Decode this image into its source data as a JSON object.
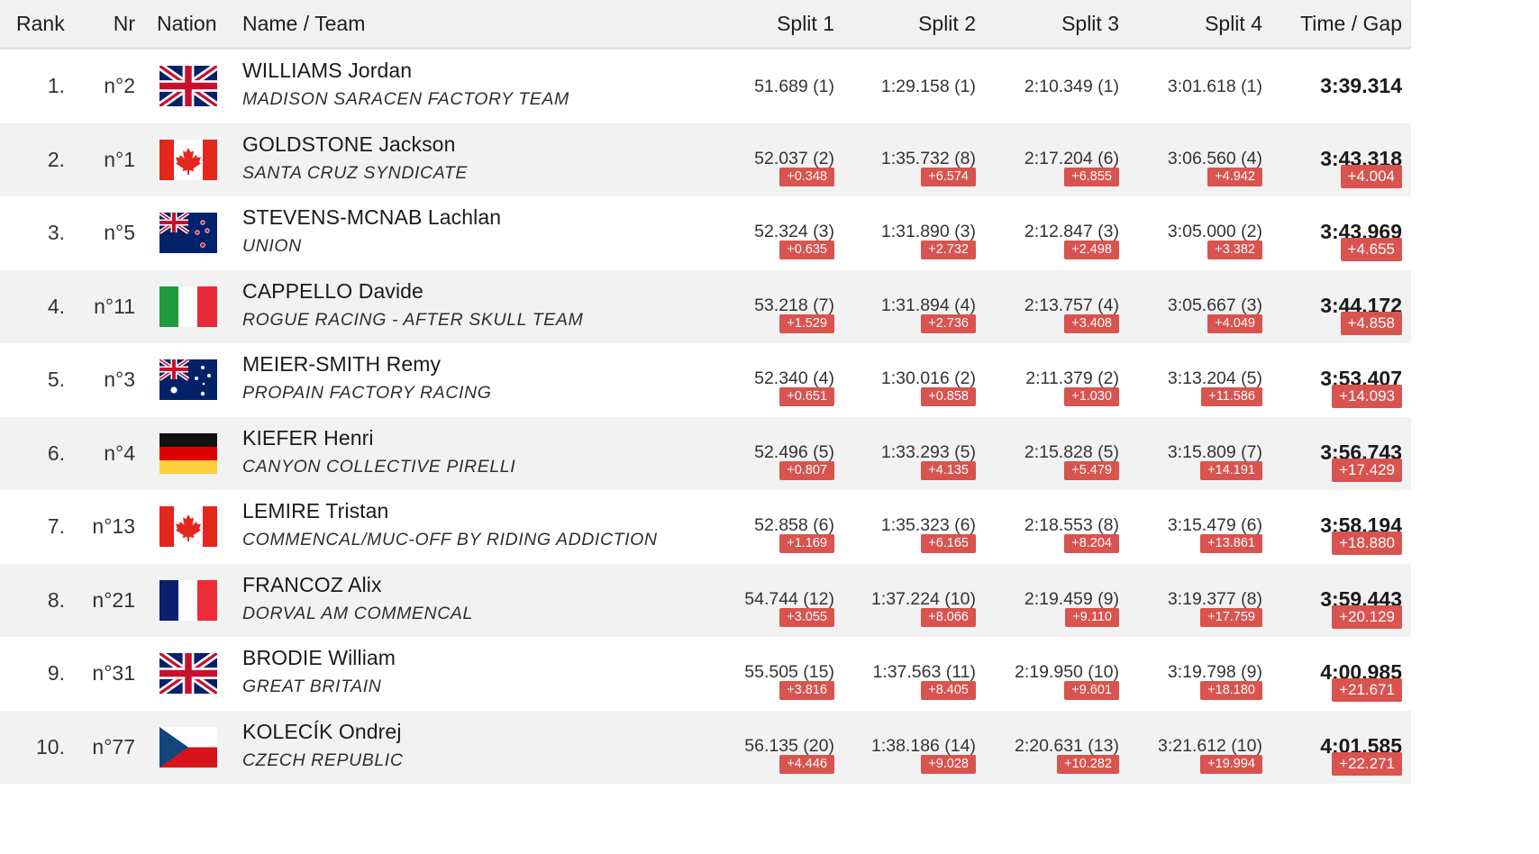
{
  "header": {
    "rank": "Rank",
    "nr": "Nr",
    "nation": "Nation",
    "name_team": "Name / Team",
    "split1": "Split 1",
    "split2": "Split 2",
    "split3": "Split 3",
    "split4": "Split 4",
    "time_gap": "Time / Gap"
  },
  "rows": [
    {
      "rank": "1.",
      "nr": "n°2",
      "flag": "gb-flag-icon",
      "name": "WILLIAMS Jordan",
      "team": "MADISON SARACEN FACTORY TEAM",
      "splits": [
        {
          "value": "51.689 (1)",
          "gap": ""
        },
        {
          "value": "1:29.158 (1)",
          "gap": ""
        },
        {
          "value": "2:10.349 (1)",
          "gap": ""
        },
        {
          "value": "3:01.618 (1)",
          "gap": ""
        }
      ],
      "time": "3:39.314",
      "time_gap": ""
    },
    {
      "rank": "2.",
      "nr": "n°1",
      "flag": "ca-flag-icon",
      "name": "GOLDSTONE Jackson",
      "team": "SANTA CRUZ SYNDICATE",
      "splits": [
        {
          "value": "52.037 (2)",
          "gap": "+0.348"
        },
        {
          "value": "1:35.732 (8)",
          "gap": "+6.574"
        },
        {
          "value": "2:17.204 (6)",
          "gap": "+6.855"
        },
        {
          "value": "3:06.560 (4)",
          "gap": "+4.942"
        }
      ],
      "time": "3:43.318",
      "time_gap": "+4.004"
    },
    {
      "rank": "3.",
      "nr": "n°5",
      "flag": "nz-flag-icon",
      "name": "STEVENS-MCNAB Lachlan",
      "team": "UNION",
      "splits": [
        {
          "value": "52.324 (3)",
          "gap": "+0.635"
        },
        {
          "value": "1:31.890 (3)",
          "gap": "+2.732"
        },
        {
          "value": "2:12.847 (3)",
          "gap": "+2.498"
        },
        {
          "value": "3:05.000 (2)",
          "gap": "+3.382"
        }
      ],
      "time": "3:43.969",
      "time_gap": "+4.655"
    },
    {
      "rank": "4.",
      "nr": "n°11",
      "flag": "it-flag-icon",
      "name": "CAPPELLO Davide",
      "team": "ROGUE RACING - AFTER SKULL TEAM",
      "splits": [
        {
          "value": "53.218 (7)",
          "gap": "+1.529"
        },
        {
          "value": "1:31.894 (4)",
          "gap": "+2.736"
        },
        {
          "value": "2:13.757 (4)",
          "gap": "+3.408"
        },
        {
          "value": "3:05.667 (3)",
          "gap": "+4.049"
        }
      ],
      "time": "3:44.172",
      "time_gap": "+4.858"
    },
    {
      "rank": "5.",
      "nr": "n°3",
      "flag": "au-flag-icon",
      "name": "MEIER-SMITH Remy",
      "team": "PROPAIN FACTORY RACING",
      "splits": [
        {
          "value": "52.340 (4)",
          "gap": "+0.651"
        },
        {
          "value": "1:30.016 (2)",
          "gap": "+0.858"
        },
        {
          "value": "2:11.379 (2)",
          "gap": "+1.030"
        },
        {
          "value": "3:13.204 (5)",
          "gap": "+11.586"
        }
      ],
      "time": "3:53.407",
      "time_gap": "+14.093"
    },
    {
      "rank": "6.",
      "nr": "n°4",
      "flag": "de-flag-icon",
      "name": "KIEFER Henri",
      "team": "CANYON COLLECTIVE PIRELLI",
      "splits": [
        {
          "value": "52.496 (5)",
          "gap": "+0.807"
        },
        {
          "value": "1:33.293 (5)",
          "gap": "+4.135"
        },
        {
          "value": "2:15.828 (5)",
          "gap": "+5.479"
        },
        {
          "value": "3:15.809 (7)",
          "gap": "+14.191"
        }
      ],
      "time": "3:56.743",
      "time_gap": "+17.429"
    },
    {
      "rank": "7.",
      "nr": "n°13",
      "flag": "ca-flag-icon",
      "name": "LEMIRE Tristan",
      "team": "COMMENCAL/MUC-OFF BY RIDING ADDICTION",
      "splits": [
        {
          "value": "52.858 (6)",
          "gap": "+1.169"
        },
        {
          "value": "1:35.323 (6)",
          "gap": "+6.165"
        },
        {
          "value": "2:18.553 (8)",
          "gap": "+8.204"
        },
        {
          "value": "3:15.479 (6)",
          "gap": "+13.861"
        }
      ],
      "time": "3:58.194",
      "time_gap": "+18.880"
    },
    {
      "rank": "8.",
      "nr": "n°21",
      "flag": "fr-flag-icon",
      "name": "FRANCOZ Alix",
      "team": "DORVAL AM COMMENCAL",
      "splits": [
        {
          "value": "54.744 (12)",
          "gap": "+3.055"
        },
        {
          "value": "1:37.224 (10)",
          "gap": "+8.066"
        },
        {
          "value": "2:19.459 (9)",
          "gap": "+9.110"
        },
        {
          "value": "3:19.377 (8)",
          "gap": "+17.759"
        }
      ],
      "time": "3:59.443",
      "time_gap": "+20.129"
    },
    {
      "rank": "9.",
      "nr": "n°31",
      "flag": "gb-flag-icon",
      "name": "BRODIE William",
      "team": "GREAT BRITAIN",
      "splits": [
        {
          "value": "55.505 (15)",
          "gap": "+3.816"
        },
        {
          "value": "1:37.563 (11)",
          "gap": "+8.405"
        },
        {
          "value": "2:19.950 (10)",
          "gap": "+9.601"
        },
        {
          "value": "3:19.798 (9)",
          "gap": "+18.180"
        }
      ],
      "time": "4:00.985",
      "time_gap": "+21.671"
    },
    {
      "rank": "10.",
      "nr": "n°77",
      "flag": "cz-flag-icon",
      "name": "KOLECÍK Ondrej",
      "team": "CZECH REPUBLIC",
      "splits": [
        {
          "value": "56.135 (20)",
          "gap": "+4.446"
        },
        {
          "value": "1:38.186 (14)",
          "gap": "+9.028"
        },
        {
          "value": "2:20.631 (13)",
          "gap": "+10.282"
        },
        {
          "value": "3:21.612 (10)",
          "gap": "+19.994"
        }
      ],
      "time": "4:01.585",
      "time_gap": "+22.271"
    }
  ]
}
